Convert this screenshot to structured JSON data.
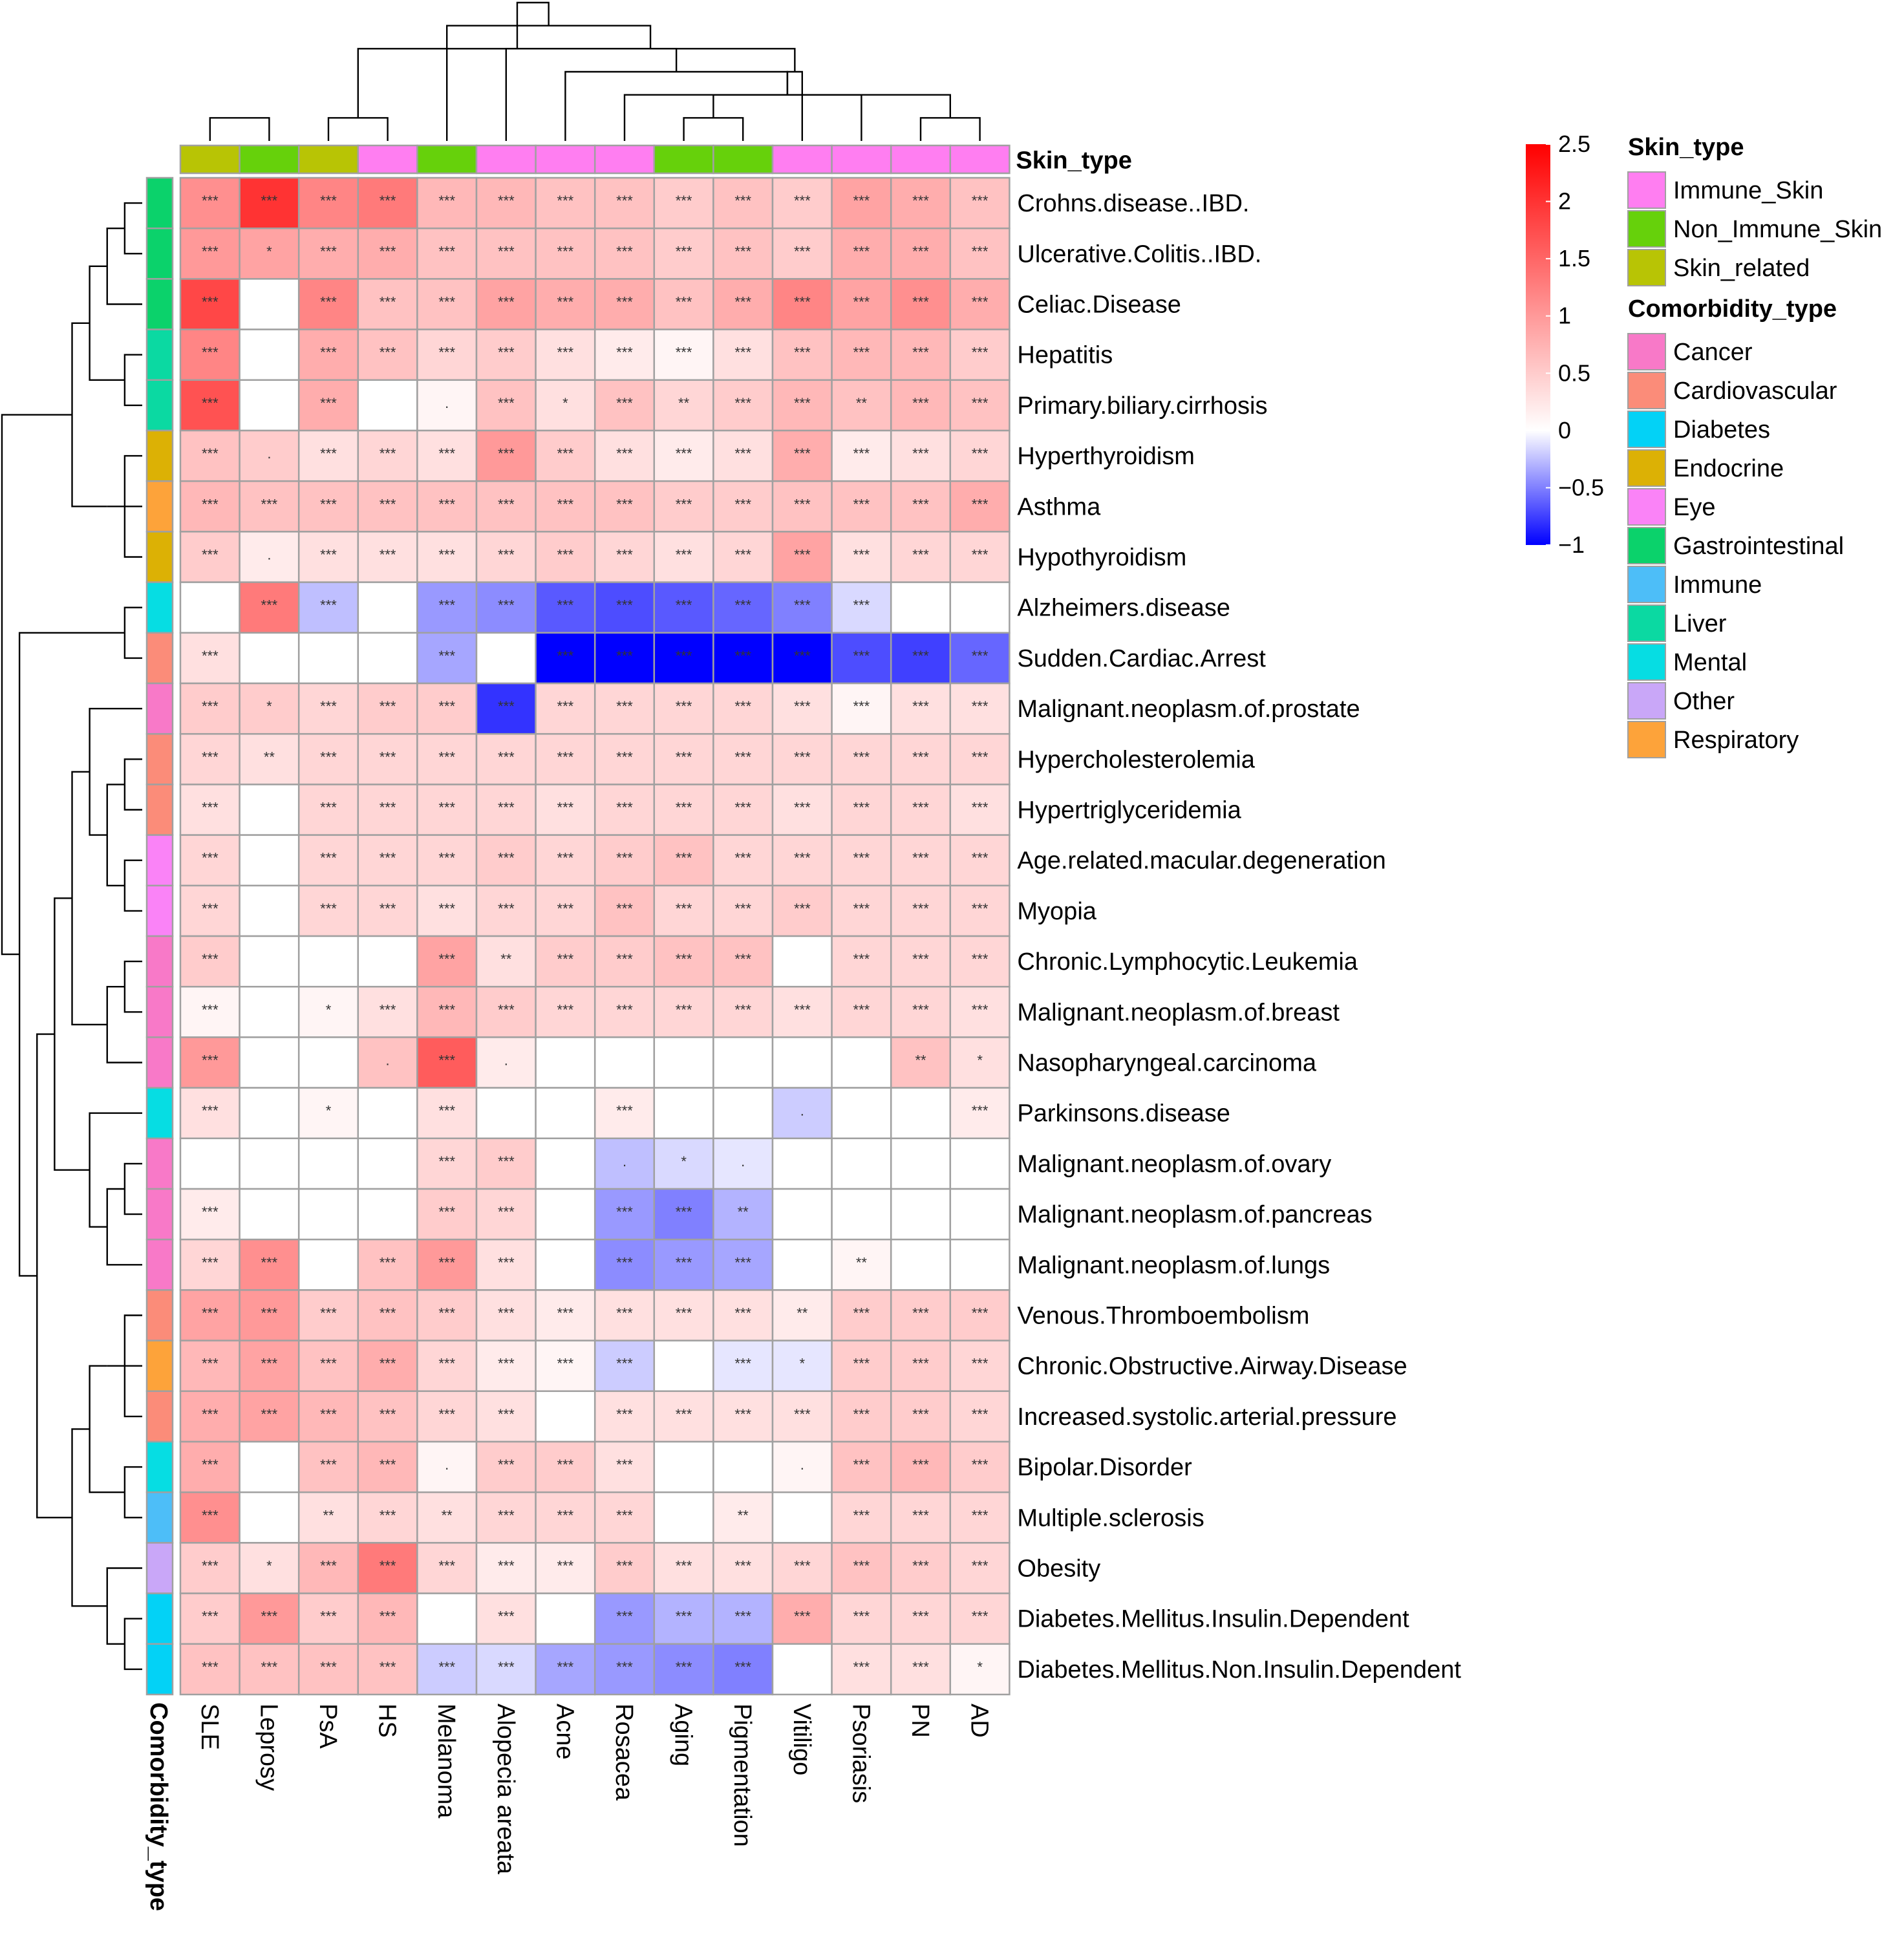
{
  "chart_data": {
    "type": "heatmap",
    "title": "",
    "columns": [
      "SLE",
      "Leprosy",
      "PsA",
      "HS",
      "Melanoma",
      "Alopecia areata",
      "Acne",
      "Rosacea",
      "Aging",
      "Pigmentation",
      "Vitiligo",
      "Psoriasis",
      "PN",
      "AD"
    ],
    "rows": [
      "Crohns.disease..IBD.",
      "Ulcerative.Colitis..IBD.",
      "Celiac.Disease",
      "Hepatitis",
      "Primary.biliary.cirrhosis",
      "Hyperthyroidism",
      "Asthma",
      "Hypothyroidism",
      "Alzheimers.disease",
      "Sudden.Cardiac.Arrest",
      "Malignant.neoplasm.of.prostate",
      "Hypercholesterolemia",
      "Hypertriglyceridemia",
      "Age.related.macular.degeneration",
      "Myopia",
      "Chronic.Lymphocytic.Leukemia",
      "Malignant.neoplasm.of.breast",
      "Nasopharyngeal.carcinoma",
      "Parkinsons.disease",
      "Malignant.neoplasm.of.ovary",
      "Malignant.neoplasm.of.pancreas",
      "Malignant.neoplasm.of.lungs",
      "Venous.Thromboembolism",
      "Chronic.Obstructive.Airway.Disease",
      "Increased.systolic.arterial.pressure",
      "Bipolar.Disorder",
      "Multiple.sclerosis",
      "Obesity",
      "Diabetes.Mellitus.Insulin.Dependent",
      "Diabetes.Mellitus.Non.Insulin.Dependent"
    ],
    "values": [
      [
        1.1,
        2.0,
        1.2,
        1.3,
        0.7,
        0.7,
        0.6,
        0.6,
        0.5,
        0.6,
        0.5,
        0.9,
        0.8,
        0.6
      ],
      [
        1.0,
        0.9,
        0.8,
        0.8,
        0.6,
        0.6,
        0.6,
        0.6,
        0.5,
        0.6,
        0.5,
        0.8,
        0.8,
        0.6
      ],
      [
        1.8,
        0,
        1.2,
        0.6,
        0.6,
        0.9,
        0.8,
        0.8,
        0.6,
        0.8,
        1.2,
        0.9,
        1.1,
        0.8
      ],
      [
        1.2,
        0,
        0.8,
        0.6,
        0.4,
        0.5,
        0.3,
        0.2,
        0.1,
        0.3,
        0.6,
        0.7,
        0.7,
        0.5
      ],
      [
        1.7,
        0,
        0.8,
        0,
        0.1,
        0.6,
        0.3,
        0.6,
        0.4,
        0.5,
        0.7,
        0.6,
        0.7,
        0.6
      ],
      [
        0.6,
        0.5,
        0.3,
        0.4,
        0.3,
        1.0,
        0.5,
        0.3,
        0.2,
        0.3,
        0.8,
        0.2,
        0.3,
        0.4
      ],
      [
        0.7,
        0.6,
        0.6,
        0.6,
        0.6,
        0.6,
        0.6,
        0.6,
        0.5,
        0.5,
        0.6,
        0.6,
        0.6,
        0.8
      ],
      [
        0.5,
        0.2,
        0.3,
        0.3,
        0.3,
        0.4,
        0.5,
        0.4,
        0.3,
        0.4,
        0.9,
        0.3,
        0.4,
        0.4
      ],
      [
        0,
        1.3,
        -0.25,
        0,
        -0.4,
        -0.45,
        -0.65,
        -0.7,
        -0.65,
        -0.6,
        -0.5,
        -0.15,
        0,
        0
      ],
      [
        0.3,
        0,
        0,
        0,
        -0.35,
        0,
        -1.0,
        -1.0,
        -1.0,
        -1.0,
        -1.0,
        -0.7,
        -0.75,
        -0.6
      ],
      [
        0.5,
        0.5,
        0.4,
        0.5,
        0.5,
        -0.8,
        0.4,
        0.4,
        0.4,
        0.4,
        0.3,
        0.1,
        0.3,
        0.3
      ],
      [
        0.4,
        0.3,
        0.4,
        0.4,
        0.4,
        0.4,
        0.4,
        0.4,
        0.4,
        0.4,
        0.4,
        0.4,
        0.4,
        0.4
      ],
      [
        0.3,
        0,
        0.4,
        0.4,
        0.4,
        0.4,
        0.3,
        0.4,
        0.4,
        0.4,
        0.3,
        0.4,
        0.4,
        0.3
      ],
      [
        0.4,
        0,
        0.4,
        0.4,
        0.4,
        0.5,
        0.4,
        0.5,
        0.6,
        0.4,
        0.4,
        0.4,
        0.4,
        0.4
      ],
      [
        0.4,
        0,
        0.4,
        0.4,
        0.3,
        0.4,
        0.4,
        0.6,
        0.4,
        0.4,
        0.5,
        0.4,
        0.4,
        0.4
      ],
      [
        0.5,
        0,
        0,
        0,
        0.9,
        0.3,
        0.5,
        0.5,
        0.6,
        0.6,
        0,
        0.4,
        0.4,
        0.4
      ],
      [
        0.1,
        0,
        0.1,
        0.3,
        0.7,
        0.5,
        0.4,
        0.4,
        0.4,
        0.4,
        0.3,
        0.4,
        0.4,
        0.3
      ],
      [
        1.0,
        0,
        0,
        0.6,
        1.6,
        0.2,
        0,
        0,
        0,
        0,
        0,
        0,
        0.6,
        0.3
      ],
      [
        0.3,
        0,
        0.1,
        0,
        0.3,
        0,
        0,
        0.2,
        0,
        0,
        -0.2,
        0,
        0,
        0.2
      ],
      [
        0,
        0,
        0,
        0,
        0.4,
        0.5,
        0,
        -0.25,
        -0.15,
        -0.1,
        0,
        0,
        0,
        0
      ],
      [
        0.2,
        0,
        0,
        0,
        0.5,
        0.4,
        0,
        -0.4,
        -0.5,
        -0.3,
        0,
        0,
        0,
        0
      ],
      [
        0.4,
        1.1,
        0,
        0.6,
        1.0,
        0.3,
        0,
        -0.45,
        -0.4,
        -0.35,
        0,
        0.1,
        0,
        0
      ],
      [
        0.9,
        1.0,
        0.5,
        0.6,
        0.5,
        0.3,
        0.2,
        0.3,
        0.3,
        0.3,
        0.2,
        0.5,
        0.5,
        0.5
      ],
      [
        0.7,
        0.9,
        0.6,
        0.8,
        0.4,
        0.2,
        0.1,
        -0.2,
        0,
        -0.1,
        -0.1,
        0.5,
        0.5,
        0.4
      ],
      [
        0.8,
        0.9,
        0.7,
        0.6,
        0.4,
        0.3,
        0,
        0.3,
        0.3,
        0.3,
        0.3,
        0.5,
        0.5,
        0.4
      ],
      [
        0.8,
        0,
        0.6,
        0.7,
        0.1,
        0.5,
        0.5,
        0.3,
        0,
        0,
        0.1,
        0.6,
        0.7,
        0.5
      ],
      [
        1.1,
        0,
        0.3,
        0.4,
        0.3,
        0.4,
        0.4,
        0.4,
        0,
        0.2,
        0,
        0.4,
        0.4,
        0.4
      ],
      [
        0.5,
        0.3,
        0.7,
        1.3,
        0.4,
        0.2,
        0.2,
        0.5,
        0.3,
        0.3,
        0.4,
        0.6,
        0.5,
        0.4
      ],
      [
        0.5,
        1.0,
        0.5,
        0.7,
        0,
        0.3,
        0,
        -0.4,
        -0.3,
        -0.3,
        0.8,
        0.4,
        0.4,
        0.4
      ],
      [
        0.6,
        0.6,
        0.6,
        0.6,
        -0.2,
        -0.15,
        -0.35,
        -0.4,
        -0.45,
        -0.5,
        0,
        0.3,
        0.3,
        0.1
      ]
    ],
    "significance": [
      [
        "***",
        "***",
        "***",
        "***",
        "***",
        "***",
        "***",
        "***",
        "***",
        "***",
        "***",
        "***",
        "***",
        "***"
      ],
      [
        "***",
        "*",
        "***",
        "***",
        "***",
        "***",
        "***",
        "***",
        "***",
        "***",
        "***",
        "***",
        "***",
        "***"
      ],
      [
        "***",
        "",
        "***",
        "***",
        "***",
        "***",
        "***",
        "***",
        "***",
        "***",
        "***",
        "***",
        "***",
        "***"
      ],
      [
        "***",
        "",
        "***",
        "***",
        "***",
        "***",
        "***",
        "***",
        "***",
        "***",
        "***",
        "***",
        "***",
        "***"
      ],
      [
        "***",
        "",
        "***",
        "",
        ".",
        "***",
        "*",
        "***",
        "**",
        "***",
        "***",
        "**",
        "***",
        "***"
      ],
      [
        "***",
        ".",
        "***",
        "***",
        "***",
        "***",
        "***",
        "***",
        "***",
        "***",
        "***",
        "***",
        "***",
        "***"
      ],
      [
        "***",
        "***",
        "***",
        "***",
        "***",
        "***",
        "***",
        "***",
        "***",
        "***",
        "***",
        "***",
        "***",
        "***"
      ],
      [
        "***",
        ".",
        "***",
        "***",
        "***",
        "***",
        "***",
        "***",
        "***",
        "***",
        "***",
        "***",
        "***",
        "***"
      ],
      [
        "",
        "***",
        "***",
        "",
        "***",
        "***",
        "***",
        "***",
        "***",
        "***",
        "***",
        "***",
        "",
        ""
      ],
      [
        "***",
        "",
        "",
        "",
        "***",
        "",
        "***",
        "***",
        "***",
        "***",
        "***",
        "***",
        "***",
        "***"
      ],
      [
        "***",
        "*",
        "***",
        "***",
        "***",
        "***",
        "***",
        "***",
        "***",
        "***",
        "***",
        "***",
        "***",
        "***"
      ],
      [
        "***",
        "**",
        "***",
        "***",
        "***",
        "***",
        "***",
        "***",
        "***",
        "***",
        "***",
        "***",
        "***",
        "***"
      ],
      [
        "***",
        "",
        "***",
        "***",
        "***",
        "***",
        "***",
        "***",
        "***",
        "***",
        "***",
        "***",
        "***",
        "***"
      ],
      [
        "***",
        "",
        "***",
        "***",
        "***",
        "***",
        "***",
        "***",
        "***",
        "***",
        "***",
        "***",
        "***",
        "***"
      ],
      [
        "***",
        "",
        "***",
        "***",
        "***",
        "***",
        "***",
        "***",
        "***",
        "***",
        "***",
        "***",
        "***",
        "***"
      ],
      [
        "***",
        "",
        "",
        "",
        "***",
        "**",
        "***",
        "***",
        "***",
        "***",
        "",
        "***",
        "***",
        "***"
      ],
      [
        "***",
        "",
        "*",
        "***",
        "***",
        "***",
        "***",
        "***",
        "***",
        "***",
        "***",
        "***",
        "***",
        "***"
      ],
      [
        "***",
        "",
        "",
        ".",
        "***",
        ".",
        "",
        "",
        "",
        "",
        "",
        "",
        "**",
        "*"
      ],
      [
        "***",
        "",
        "*",
        "",
        "***",
        "",
        "",
        "***",
        "",
        "",
        ".",
        "",
        "",
        "***"
      ],
      [
        "",
        "",
        "",
        "",
        "***",
        "***",
        "",
        ".",
        "*",
        ".",
        "",
        "",
        "",
        ""
      ],
      [
        "***",
        "",
        "",
        "",
        "***",
        "***",
        "",
        "***",
        "***",
        "**",
        "",
        "",
        "",
        ""
      ],
      [
        "***",
        "***",
        "",
        "***",
        "***",
        "***",
        "",
        "***",
        "***",
        "***",
        "",
        "**",
        "",
        ""
      ],
      [
        "***",
        "***",
        "***",
        "***",
        "***",
        "***",
        "***",
        "***",
        "***",
        "***",
        "**",
        "***",
        "***",
        "***"
      ],
      [
        "***",
        "***",
        "***",
        "***",
        "***",
        "***",
        "***",
        "***",
        "",
        "***",
        "*",
        "***",
        "***",
        "***"
      ],
      [
        "***",
        "***",
        "***",
        "***",
        "***",
        "***",
        "",
        "***",
        "***",
        "***",
        "***",
        "***",
        "***",
        "***"
      ],
      [
        "***",
        "",
        "***",
        "***",
        ".",
        "***",
        "***",
        "***",
        "",
        "",
        ".",
        "***",
        "***",
        "***"
      ],
      [
        "***",
        "",
        "**",
        "***",
        "**",
        "***",
        "***",
        "***",
        "",
        "**",
        "",
        "***",
        "***",
        "***"
      ],
      [
        "***",
        "*",
        "***",
        "***",
        "***",
        "***",
        "***",
        "***",
        "***",
        "***",
        "***",
        "***",
        "***",
        "***"
      ],
      [
        "***",
        "***",
        "***",
        "***",
        "",
        "***",
        "",
        "***",
        "***",
        "***",
        "***",
        "***",
        "***",
        "***"
      ],
      [
        "***",
        "***",
        "***",
        "***",
        "***",
        "***",
        "***",
        "***",
        "***",
        "***",
        "",
        "***",
        "***",
        "*"
      ]
    ],
    "column_skin_type": [
      "Skin_related",
      "Non_Immune_Skin",
      "Skin_related",
      "Immune_Skin",
      "Non_Immune_Skin",
      "Immune_Skin",
      "Immune_Skin",
      "Immune_Skin",
      "Non_Immune_Skin",
      "Non_Immune_Skin",
      "Immune_Skin",
      "Immune_Skin",
      "Immune_Skin",
      "Immune_Skin"
    ],
    "row_comorbidity_type": [
      "Gastrointestinal",
      "Gastrointestinal",
      "Gastrointestinal",
      "Liver",
      "Liver",
      "Endocrine",
      "Respiratory",
      "Endocrine",
      "Mental",
      "Cardiovascular",
      "Cancer",
      "Cardiovascular",
      "Cardiovascular",
      "Eye",
      "Eye",
      "Cancer",
      "Cancer",
      "Cancer",
      "Mental",
      "Cancer",
      "Cancer",
      "Cancer",
      "Cardiovascular",
      "Respiratory",
      "Cardiovascular",
      "Mental",
      "Immune",
      "Other",
      "Diabetes",
      "Diabetes"
    ],
    "color_scale": {
      "min": -1,
      "max": 2.5,
      "stops": [
        {
          "value": -1,
          "color": "#0000ff"
        },
        {
          "value": 0,
          "color": "#ffffff"
        },
        {
          "value": 2.5,
          "color": "#ff0000"
        }
      ],
      "ticks": [
        {
          "value": 2.5,
          "label": "2.5"
        },
        {
          "value": 2,
          "label": "2"
        },
        {
          "value": 1.5,
          "label": "1.5"
        },
        {
          "value": 1,
          "label": "1"
        },
        {
          "value": 0.5,
          "label": "0.5"
        },
        {
          "value": 0,
          "label": "0"
        },
        {
          "value": -0.5,
          "label": "−0.5"
        },
        {
          "value": -1,
          "label": "−1"
        }
      ]
    },
    "annotation_labels": {
      "column": "Skin_type",
      "row": "Comorbidity_type"
    },
    "legends": [
      {
        "title": "Skin_type",
        "items": [
          {
            "label": "Immune_Skin",
            "color": "#ff7ef1"
          },
          {
            "label": "Non_Immune_Skin",
            "color": "#66d10b"
          },
          {
            "label": "Skin_related",
            "color": "#b8c405"
          }
        ]
      },
      {
        "title": "Comorbidity_type",
        "items": [
          {
            "label": "Cancer",
            "color": "#f879c8"
          },
          {
            "label": "Cardiovascular",
            "color": "#fb8c79"
          },
          {
            "label": "Diabetes",
            "color": "#03d2f6"
          },
          {
            "label": "Endocrine",
            "color": "#dcb105"
          },
          {
            "label": "Eye",
            "color": "#fa83f7"
          },
          {
            "label": "Gastrointestinal",
            "color": "#0bd26b"
          },
          {
            "label": "Immune",
            "color": "#4dbef8"
          },
          {
            "label": "Liver",
            "color": "#0bd9a2"
          },
          {
            "label": "Mental",
            "color": "#06dde3"
          },
          {
            "label": "Other",
            "color": "#c9a7f8"
          },
          {
            "label": "Respiratory",
            "color": "#fda33a"
          }
        ]
      }
    ],
    "column_dendrogram": [
      [
        8,
        9
      ],
      [
        12,
        13
      ],
      [
        11,
        14
      ],
      [
        7,
        15
      ],
      [
        10,
        16
      ],
      [
        6,
        17
      ],
      [
        5,
        18
      ],
      [
        2,
        3
      ],
      [
        20,
        4
      ],
      [
        21,
        19
      ],
      [
        0,
        1
      ],
      [
        22,
        23
      ]
    ],
    "row_dendrogram": [
      [
        0,
        1
      ],
      [
        2,
        30
      ],
      [
        3,
        4
      ],
      [
        31,
        32
      ],
      [
        5,
        7
      ],
      [
        34,
        6
      ],
      [
        33,
        35
      ],
      [
        8,
        9
      ],
      [
        11,
        12
      ],
      [
        13,
        14
      ],
      [
        38,
        39
      ],
      [
        15,
        16
      ],
      [
        41,
        17
      ],
      [
        10,
        40
      ],
      [
        43,
        42
      ],
      [
        19,
        20
      ],
      [
        45,
        21
      ],
      [
        46,
        18
      ],
      [
        44,
        47
      ],
      [
        22,
        24
      ],
      [
        49,
        23
      ],
      [
        25,
        26
      ],
      [
        50,
        51
      ],
      [
        28,
        29
      ],
      [
        27,
        53
      ],
      [
        52,
        54
      ],
      [
        48,
        55
      ],
      [
        37,
        56
      ],
      [
        36,
        57
      ]
    ]
  }
}
